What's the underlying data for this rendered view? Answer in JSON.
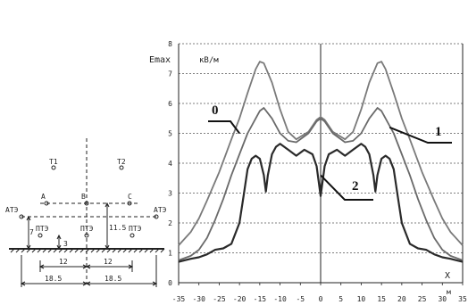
{
  "chart_data": {
    "type": "line",
    "y_title": "Emax",
    "y_unit": "кВ/м",
    "x_axis_label": "X",
    "x_unit": "м",
    "xlim": [
      -35,
      35
    ],
    "ylim": [
      0,
      8
    ],
    "x_ticks": [
      -35,
      -30,
      -25,
      -20,
      -15,
      -10,
      -5,
      0,
      5,
      10,
      15,
      20,
      25,
      30,
      35
    ],
    "y_ticks": [
      0,
      1,
      2,
      3,
      4,
      5,
      6,
      7,
      8
    ],
    "grid": "horizontal-dotted",
    "series": [
      {
        "name": "0",
        "color": "#7a7a7a",
        "points": [
          [
            -35,
            1.25
          ],
          [
            -32,
            1.7
          ],
          [
            -30,
            2.15
          ],
          [
            -28,
            2.75
          ],
          [
            -25,
            3.7
          ],
          [
            -22,
            4.8
          ],
          [
            -20,
            5.5
          ],
          [
            -18,
            6.35
          ],
          [
            -16,
            7.15
          ],
          [
            -15,
            7.4
          ],
          [
            -14,
            7.35
          ],
          [
            -12,
            6.7
          ],
          [
            -10,
            5.8
          ],
          [
            -8,
            5.05
          ],
          [
            -6,
            4.8
          ],
          [
            -3,
            5.05
          ],
          [
            -1,
            5.45
          ],
          [
            0,
            5.55
          ],
          [
            1,
            5.45
          ],
          [
            3,
            5.05
          ],
          [
            6,
            4.8
          ],
          [
            8,
            5.05
          ],
          [
            10,
            5.8
          ],
          [
            12,
            6.7
          ],
          [
            14,
            7.35
          ],
          [
            15,
            7.4
          ],
          [
            16,
            7.15
          ],
          [
            18,
            6.35
          ],
          [
            20,
            5.5
          ],
          [
            22,
            4.8
          ],
          [
            25,
            3.7
          ],
          [
            28,
            2.75
          ],
          [
            30,
            2.15
          ],
          [
            32,
            1.7
          ],
          [
            35,
            1.25
          ]
        ]
      },
      {
        "name": "1",
        "color": "#6a6a6a",
        "points": [
          [
            -35,
            0.75
          ],
          [
            -32,
            0.9
          ],
          [
            -30,
            1.1
          ],
          [
            -28,
            1.5
          ],
          [
            -26,
            2.1
          ],
          [
            -24,
            2.8
          ],
          [
            -22,
            3.6
          ],
          [
            -20,
            4.3
          ],
          [
            -18,
            5.0
          ],
          [
            -16,
            5.5
          ],
          [
            -15,
            5.75
          ],
          [
            -14,
            5.85
          ],
          [
            -12,
            5.5
          ],
          [
            -10,
            5.0
          ],
          [
            -8,
            4.75
          ],
          [
            -6,
            4.7
          ],
          [
            -3,
            5.0
          ],
          [
            -1,
            5.4
          ],
          [
            0,
            5.5
          ],
          [
            1,
            5.4
          ],
          [
            3,
            5.0
          ],
          [
            6,
            4.7
          ],
          [
            8,
            4.75
          ],
          [
            10,
            5.0
          ],
          [
            12,
            5.5
          ],
          [
            14,
            5.85
          ],
          [
            15,
            5.75
          ],
          [
            16,
            5.5
          ],
          [
            18,
            5.0
          ],
          [
            20,
            4.3
          ],
          [
            22,
            3.6
          ],
          [
            24,
            2.8
          ],
          [
            26,
            2.1
          ],
          [
            28,
            1.5
          ],
          [
            30,
            1.1
          ],
          [
            32,
            0.9
          ],
          [
            35,
            0.75
          ]
        ]
      },
      {
        "name": "2",
        "color": "#2a2a2a",
        "points": [
          [
            -35,
            0.7
          ],
          [
            -32,
            0.8
          ],
          [
            -30,
            0.85
          ],
          [
            -28,
            0.95
          ],
          [
            -26,
            1.1
          ],
          [
            -24,
            1.15
          ],
          [
            -22,
            1.3
          ],
          [
            -20,
            2.0
          ],
          [
            -19,
            2.9
          ],
          [
            -18,
            3.8
          ],
          [
            -17,
            4.15
          ],
          [
            -16,
            4.25
          ],
          [
            -15,
            4.15
          ],
          [
            -14,
            3.6
          ],
          [
            -13.5,
            3.05
          ],
          [
            -13,
            3.6
          ],
          [
            -12,
            4.3
          ],
          [
            -11,
            4.55
          ],
          [
            -10,
            4.65
          ],
          [
            -8,
            4.45
          ],
          [
            -6,
            4.25
          ],
          [
            -4,
            4.45
          ],
          [
            -2,
            4.3
          ],
          [
            -1,
            3.9
          ],
          [
            0,
            2.9
          ],
          [
            1,
            3.9
          ],
          [
            2,
            4.3
          ],
          [
            4,
            4.45
          ],
          [
            6,
            4.25
          ],
          [
            8,
            4.45
          ],
          [
            10,
            4.65
          ],
          [
            11,
            4.55
          ],
          [
            12,
            4.3
          ],
          [
            13,
            3.6
          ],
          [
            13.5,
            3.05
          ],
          [
            14,
            3.6
          ],
          [
            15,
            4.15
          ],
          [
            16,
            4.25
          ],
          [
            17,
            4.15
          ],
          [
            18,
            3.8
          ],
          [
            19,
            2.9
          ],
          [
            20,
            2.0
          ],
          [
            22,
            1.3
          ],
          [
            24,
            1.15
          ],
          [
            26,
            1.1
          ],
          [
            28,
            0.95
          ],
          [
            30,
            0.85
          ],
          [
            32,
            0.8
          ],
          [
            35,
            0.7
          ]
        ]
      }
    ],
    "series_labels": [
      {
        "text": "0",
        "anchor": [
          -20,
          5.0
        ]
      },
      {
        "text": "1",
        "anchor": [
          17,
          5.2
        ]
      },
      {
        "text": "2",
        "anchor": [
          0,
          3.6
        ]
      }
    ]
  },
  "diagram": {
    "labels": {
      "t1": "T1",
      "t2": "T2",
      "a": "A",
      "b": "B",
      "c": "C",
      "ate_left": "АТЭ",
      "ate_right": "АТЭ",
      "pte_left": "ПТЭ",
      "pte_mid": "ПТЭ",
      "pte_right": "ПТЭ",
      "dim_7": "7",
      "dim_3": "3",
      "dim_11_5": "11.5",
      "dim_12_left": "12",
      "dim_12_right": "12",
      "dim_18_5_left": "18.5",
      "dim_18_5_right": "18.5"
    }
  }
}
